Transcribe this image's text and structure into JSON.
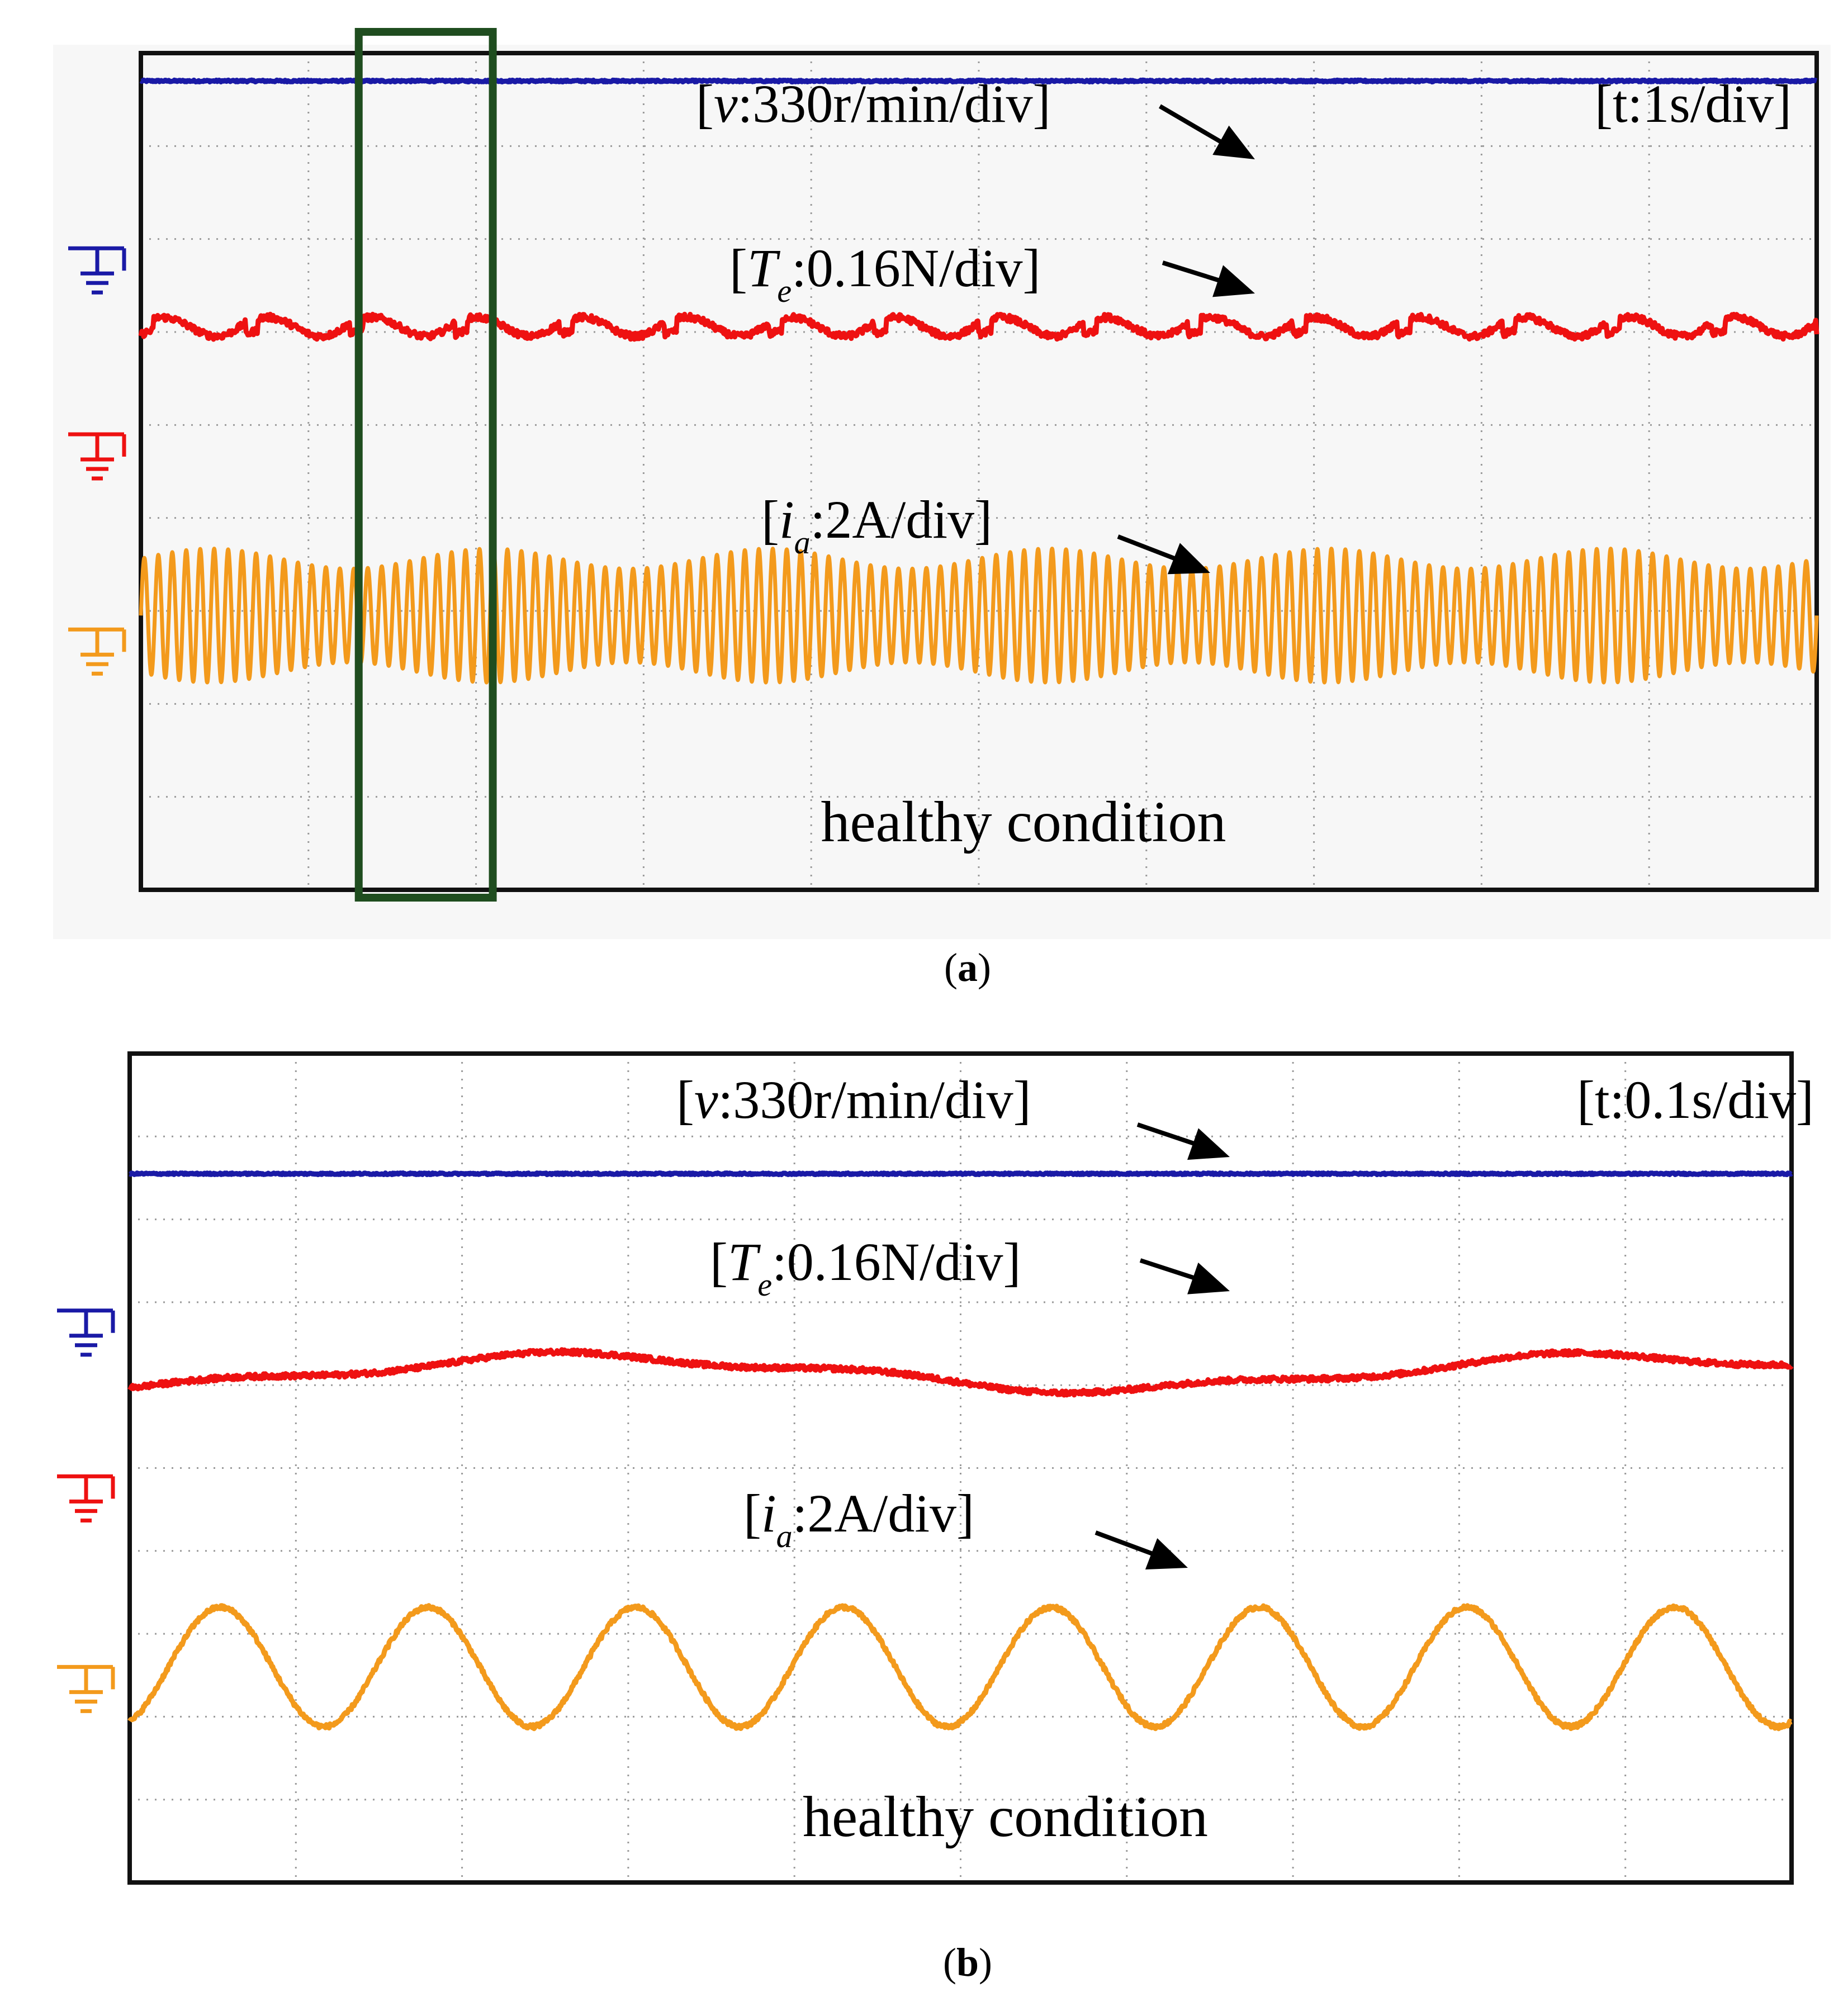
{
  "chart_data": [
    {
      "id": "a",
      "type": "line",
      "caption": "a",
      "time_label": "[t:1s/div]",
      "condition_label": "healthy condition",
      "grid": true,
      "grid_divisions": {
        "x": 10,
        "y": 9
      },
      "x_unit": "div",
      "xlim": [
        0,
        10
      ],
      "highlight": {
        "label": "zoomed window",
        "x_range": [
          1.3,
          2.1
        ],
        "color": "#1f4d1f"
      },
      "series": [
        {
          "name": "v",
          "label_main": "v",
          "label_sub": "",
          "label_rest": ":330r/min/div]",
          "color": "#1a1aa6",
          "offset_div": 8.7,
          "shape": "flat",
          "amplitude_div": 0.0,
          "cycles": 0
        },
        {
          "name": "Te",
          "label_main": "T",
          "label_sub": "e",
          "label_rest": ":0.16N/div]",
          "color": "#ee1111",
          "offset_div": 6.1,
          "shape": "ripple",
          "amplitude_div": 0.18,
          "cycles": 16
        },
        {
          "name": "ia",
          "label_main": "i",
          "label_sub": "a",
          "label_rest": ":2A/div]",
          "color": "#f39a1c",
          "offset_div": 2.95,
          "shape": "dense-sine",
          "amplitude_div": 0.72,
          "cycles": 120
        }
      ],
      "ground_markers": [
        {
          "channel": "v",
          "color": "#1a1aa6",
          "level_div": 6.9
        },
        {
          "channel": "Te",
          "color": "#ee1111",
          "level_div": 4.9
        },
        {
          "channel": "ia",
          "color": "#f39a1c",
          "level_div": 2.8
        }
      ]
    },
    {
      "id": "b",
      "type": "line",
      "caption": "b",
      "time_label": "[t:0.1s/div]",
      "condition_label": "healthy condition",
      "grid": true,
      "grid_divisions": {
        "x": 10,
        "y": 10
      },
      "x_unit": "div",
      "xlim": [
        0,
        10
      ],
      "series": [
        {
          "name": "v",
          "label_main": "v",
          "label_sub": "",
          "label_rest": ":330r/min/div]",
          "color": "#1a1aa6",
          "offset_div": 8.55,
          "shape": "flat",
          "amplitude_div": 0.0,
          "cycles": 0
        },
        {
          "name": "Te",
          "label_main": "T",
          "label_sub": "e",
          "label_rest": ":0.16N/div]",
          "color": "#ee1111",
          "offset_div": 6.15,
          "shape": "slow-wave",
          "amplitude_div": 0.22,
          "cycles": 1.6
        },
        {
          "name": "ia",
          "label_main": "i",
          "label_sub": "a",
          "label_rest": ":2A/div]",
          "color": "#f39a1c",
          "offset_div": 2.6,
          "shape": "sine",
          "amplitude_div": 0.72,
          "cycles": 8
        }
      ],
      "ground_markers": [
        {
          "channel": "v",
          "color": "#1a1aa6",
          "level_div": 6.9
        },
        {
          "channel": "Te",
          "color": "#ee1111",
          "level_div": 4.9
        },
        {
          "channel": "ia",
          "color": "#f39a1c",
          "level_div": 2.6
        }
      ]
    }
  ]
}
